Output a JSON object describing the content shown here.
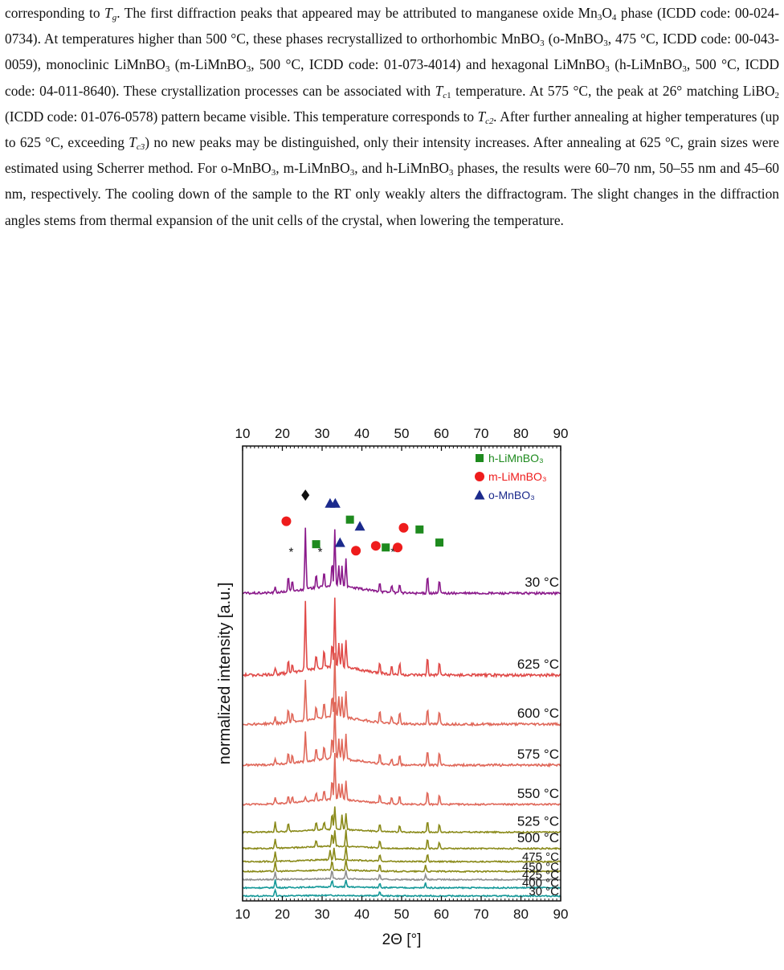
{
  "paragraph": [
    {
      "t": "text",
      "v": "corresponding to "
    },
    {
      "t": "i",
      "v": "T"
    },
    {
      "t": "isub",
      "v": "g"
    },
    {
      "t": "text",
      "v": ". The first diffraction peaks that appeared may be attributed to manganese oxide Mn"
    },
    {
      "t": "sub",
      "v": "3"
    },
    {
      "t": "text",
      "v": "O"
    },
    {
      "t": "sub",
      "v": "4"
    },
    {
      "t": "text",
      "v": " phase (ICDD code: 00-024-0734). At temperatures higher than 500 °C, these phases recrystallized to orthorhombic MnBO"
    },
    {
      "t": "sub",
      "v": "3"
    },
    {
      "t": "text",
      "v": " (o-MnBO"
    },
    {
      "t": "sub",
      "v": "3"
    },
    {
      "t": "text",
      "v": ", 475 °C, ICDD code: 00-043-0059), monoclinic LiMnBO"
    },
    {
      "t": "sub",
      "v": "3"
    },
    {
      "t": "text",
      "v": " (m-LiMnBO"
    },
    {
      "t": "sub",
      "v": "3"
    },
    {
      "t": "text",
      "v": ", 500 °C, ICDD code: 01-073-4014) and hexagonal LiMnBO"
    },
    {
      "t": "sub",
      "v": "3"
    },
    {
      "t": "text",
      "v": " (h-LiMnBO"
    },
    {
      "t": "sub",
      "v": "3"
    },
    {
      "t": "text",
      "v": ", 500 °C, ICDD code: 04-011-8640). These crystallization processes can be associated with "
    },
    {
      "t": "i",
      "v": "T"
    },
    {
      "t": "isub",
      "v": "c"
    },
    {
      "t": "sub",
      "v": "1"
    },
    {
      "t": "text",
      "v": " temperature. At 575 °C, the peak at 26° matching LiBO"
    },
    {
      "t": "sub",
      "v": "2"
    },
    {
      "t": "text",
      "v": " (ICDD code: 01-076-0578) pattern became visible. This temperature corresponds to "
    },
    {
      "t": "i",
      "v": "T"
    },
    {
      "t": "isub",
      "v": "c2"
    },
    {
      "t": "i",
      "v": "."
    },
    {
      "t": "text",
      "v": "  After further annealing at higher temperatures (up to 625 °C, exceeding "
    },
    {
      "t": "i",
      "v": "T"
    },
    {
      "t": "isub",
      "v": "c3"
    },
    {
      "t": "text",
      "v": ") no new peaks may be distinguished, only their intensity increases. After annealing at 625 °C, grain sizes were estimated using Scherrer method. For o-MnBO"
    },
    {
      "t": "sub",
      "v": "3"
    },
    {
      "t": "text",
      "v": ", m-LiMnBO"
    },
    {
      "t": "sub",
      "v": "3"
    },
    {
      "t": "text",
      "v": ", and h-LiMnBO"
    },
    {
      "t": "sub",
      "v": "3"
    },
    {
      "t": "text",
      "v": " phases, the results were 60–70 nm, 50–55 nm and 45–60 nm, respectively. The cooling down of the sample to the RT only weakly alters the diffractogram. The slight changes in the diffraction angles stems from thermal expansion of the unit cells of the crystal, when lowering the temperature."
    }
  ],
  "chart_data": {
    "type": "line",
    "xlabel": "2Θ [°]",
    "ylabel": "normalized intensity [a.u.]",
    "xlim": [
      10,
      90
    ],
    "xticks": [
      10,
      20,
      30,
      40,
      50,
      60,
      70,
      80,
      90
    ],
    "legend": [
      {
        "name": "h-LiMnBO₃",
        "marker": "square",
        "color": "#1e8a1e"
      },
      {
        "name": "m-LiMnBO₃",
        "marker": "circle",
        "color": "#ee1c1c"
      },
      {
        "name": "o-MnBO₃",
        "marker": "triangle",
        "color": "#1b2a8c"
      }
    ],
    "legend_placement": "top-right",
    "series": [
      {
        "label": "30 °C",
        "color": "#169999",
        "baseline": 0.0,
        "scale": 0.3,
        "peaks": [
          [
            18.2,
            0.4
          ],
          [
            44.5,
            0.3
          ]
        ]
      },
      {
        "label": "400 °C",
        "color": "#169999",
        "baseline": 0.5,
        "scale": 0.5,
        "peaks": [
          [
            18.2,
            0.5
          ],
          [
            32.5,
            0.4
          ],
          [
            36.0,
            0.4
          ],
          [
            44.5,
            0.3
          ],
          [
            56.0,
            0.3
          ]
        ]
      },
      {
        "label": "425 °C",
        "color": "#8f8f8f",
        "baseline": 1.0,
        "scale": 0.5,
        "peaks": [
          [
            18.2,
            0.5
          ],
          [
            32.5,
            0.5
          ],
          [
            36.0,
            0.5
          ],
          [
            44.5,
            0.3
          ],
          [
            56.0,
            0.3
          ]
        ]
      },
      {
        "label": "450 °C",
        "color": "#8a8a1a",
        "baseline": 1.5,
        "scale": 0.7,
        "peaks": [
          [
            18.2,
            0.6
          ],
          [
            32.5,
            0.6
          ],
          [
            36.0,
            0.7
          ],
          [
            44.5,
            0.4
          ],
          [
            56.0,
            0.4
          ]
        ]
      },
      {
        "label": "475 °C",
        "color": "#8a8a1a",
        "baseline": 2.1,
        "scale": 1.0,
        "peaks": [
          [
            18.2,
            0.6
          ],
          [
            32.0,
            0.6
          ],
          [
            33.0,
            0.7
          ],
          [
            36.0,
            0.9
          ],
          [
            44.5,
            0.4
          ],
          [
            56.5,
            0.5
          ]
        ]
      },
      {
        "label": "500 °C",
        "color": "#8a8a1a",
        "baseline": 2.9,
        "scale": 1.2,
        "peaks": [
          [
            18.2,
            0.6
          ],
          [
            28.5,
            0.4
          ],
          [
            32.5,
            0.8
          ],
          [
            33.2,
            1.0
          ],
          [
            36.0,
            1.0
          ],
          [
            44.5,
            0.5
          ],
          [
            56.5,
            0.6
          ],
          [
            59.5,
            0.4
          ]
        ]
      },
      {
        "label": "525 °C",
        "color": "#8a8a1a",
        "baseline": 3.9,
        "scale": 1.4,
        "peaks": [
          [
            18.2,
            0.6
          ],
          [
            21.5,
            0.5
          ],
          [
            28.5,
            0.5
          ],
          [
            30.5,
            0.5
          ],
          [
            32.5,
            1.0
          ],
          [
            33.2,
            1.4
          ],
          [
            35.0,
            0.9
          ],
          [
            36.0,
            1.0
          ],
          [
            44.5,
            0.5
          ],
          [
            49.5,
            0.4
          ],
          [
            56.5,
            0.7
          ],
          [
            59.5,
            0.5
          ]
        ]
      },
      {
        "label": "550 °C",
        "color": "#e0685a",
        "baseline": 5.6,
        "scale": 2.5,
        "peaks": [
          [
            18.2,
            0.4
          ],
          [
            21.5,
            0.5
          ],
          [
            22.5,
            0.4
          ],
          [
            25.8,
            0.3
          ],
          [
            28.5,
            0.5
          ],
          [
            30.5,
            0.6
          ],
          [
            32.5,
            1.2
          ],
          [
            33.2,
            2.8
          ],
          [
            34.2,
            1.0
          ],
          [
            35.0,
            1.0
          ],
          [
            36.0,
            1.2
          ],
          [
            44.5,
            0.5
          ],
          [
            47.5,
            0.4
          ],
          [
            49.5,
            0.5
          ],
          [
            56.5,
            0.8
          ],
          [
            59.5,
            0.6
          ]
        ]
      },
      {
        "label": "575 °C",
        "color": "#e0685a",
        "baseline": 8.0,
        "scale": 3.2,
        "peaks": [
          [
            18.2,
            0.4
          ],
          [
            21.5,
            0.7
          ],
          [
            22.5,
            0.5
          ],
          [
            25.8,
            1.8
          ],
          [
            28.5,
            0.7
          ],
          [
            30.5,
            0.8
          ],
          [
            32.5,
            1.4
          ],
          [
            33.2,
            3.5
          ],
          [
            34.2,
            1.2
          ],
          [
            35.0,
            1.2
          ],
          [
            36.0,
            1.5
          ],
          [
            44.5,
            0.6
          ],
          [
            47.5,
            0.4
          ],
          [
            49.5,
            0.6
          ],
          [
            56.5,
            0.9
          ],
          [
            59.5,
            0.8
          ]
        ]
      },
      {
        "label": "600 °C",
        "color": "#e0685a",
        "baseline": 10.5,
        "scale": 3.6,
        "peaks": [
          [
            18.2,
            0.4
          ],
          [
            21.5,
            0.8
          ],
          [
            22.5,
            0.6
          ],
          [
            25.8,
            2.5
          ],
          [
            28.5,
            0.8
          ],
          [
            30.5,
            1.0
          ],
          [
            32.5,
            1.4
          ],
          [
            33.2,
            3.9
          ],
          [
            34.2,
            1.3
          ],
          [
            35.0,
            1.3
          ],
          [
            36.0,
            1.6
          ],
          [
            44.5,
            0.7
          ],
          [
            47.5,
            0.5
          ],
          [
            49.5,
            0.7
          ],
          [
            56.5,
            1.0
          ],
          [
            59.5,
            0.8
          ]
        ]
      },
      {
        "label": "625 °C",
        "color": "#e04a48",
        "baseline": 13.5,
        "scale": 4.2,
        "peaks": [
          [
            18.2,
            0.4
          ],
          [
            21.5,
            0.8
          ],
          [
            22.5,
            0.6
          ],
          [
            25.8,
            4.2
          ],
          [
            28.5,
            0.9
          ],
          [
            30.5,
            1.1
          ],
          [
            32.5,
            1.5
          ],
          [
            33.2,
            4.3
          ],
          [
            34.2,
            1.4
          ],
          [
            35.0,
            1.4
          ],
          [
            36.0,
            1.7
          ],
          [
            44.5,
            0.7
          ],
          [
            47.5,
            0.5
          ],
          [
            49.5,
            0.7
          ],
          [
            56.5,
            1.1
          ],
          [
            59.5,
            0.8
          ]
        ]
      },
      {
        "label": "30 °C",
        "color": "#8b1a8b",
        "baseline": 18.5,
        "scale": 3.5,
        "peaks": [
          [
            18.2,
            0.3
          ],
          [
            21.5,
            0.9
          ],
          [
            22.5,
            0.6
          ],
          [
            25.8,
            3.8
          ],
          [
            28.5,
            0.9
          ],
          [
            30.5,
            1.0
          ],
          [
            32.5,
            1.5
          ],
          [
            33.2,
            3.5
          ],
          [
            34.2,
            1.3
          ],
          [
            35.0,
            1.3
          ],
          [
            36.0,
            1.8
          ],
          [
            44.5,
            0.6
          ],
          [
            47.5,
            0.5
          ],
          [
            49.5,
            0.6
          ],
          [
            56.5,
            1.1
          ],
          [
            59.5,
            0.8
          ]
        ]
      }
    ],
    "phase_markers": [
      {
        "symbol": "circle",
        "x": 21.0,
        "y": 22.9,
        "color": "#ee1c1c"
      },
      {
        "symbol": "asterisk",
        "x": 22.2,
        "y": 21.1
      },
      {
        "symbol": "diamond",
        "x": 25.8,
        "y": 24.5
      },
      {
        "symbol": "square",
        "x": 28.5,
        "y": 21.5,
        "color": "#1e8a1e"
      },
      {
        "symbol": "asterisk",
        "x": 29.5,
        "y": 21.1
      },
      {
        "symbol": "triangle",
        "x": 32.0,
        "y": 24.0,
        "color": "#1b2a8c"
      },
      {
        "symbol": "triangle",
        "x": 33.3,
        "y": 24.0,
        "color": "#1b2a8c"
      },
      {
        "symbol": "triangle",
        "x": 34.5,
        "y": 21.6,
        "color": "#1b2a8c"
      },
      {
        "symbol": "square",
        "x": 37.0,
        "y": 23.0,
        "color": "#1e8a1e"
      },
      {
        "symbol": "triangle",
        "x": 39.5,
        "y": 22.6,
        "color": "#1b2a8c"
      },
      {
        "symbol": "circle",
        "x": 38.5,
        "y": 21.1,
        "color": "#ee1c1c"
      },
      {
        "symbol": "circle",
        "x": 43.5,
        "y": 21.4,
        "color": "#ee1c1c"
      },
      {
        "symbol": "square",
        "x": 46.0,
        "y": 21.3,
        "color": "#1e8a1e"
      },
      {
        "symbol": "asterisk",
        "x": 47.8,
        "y": 21.1
      },
      {
        "symbol": "circle",
        "x": 49.0,
        "y": 21.3,
        "color": "#ee1c1c"
      },
      {
        "symbol": "circle",
        "x": 50.5,
        "y": 22.5,
        "color": "#ee1c1c"
      },
      {
        "symbol": "square",
        "x": 54.5,
        "y": 22.4,
        "color": "#1e8a1e"
      },
      {
        "symbol": "square",
        "x": 59.5,
        "y": 21.6,
        "color": "#1e8a1e"
      }
    ],
    "ylim": [
      -0.3,
      27.5
    ]
  }
}
